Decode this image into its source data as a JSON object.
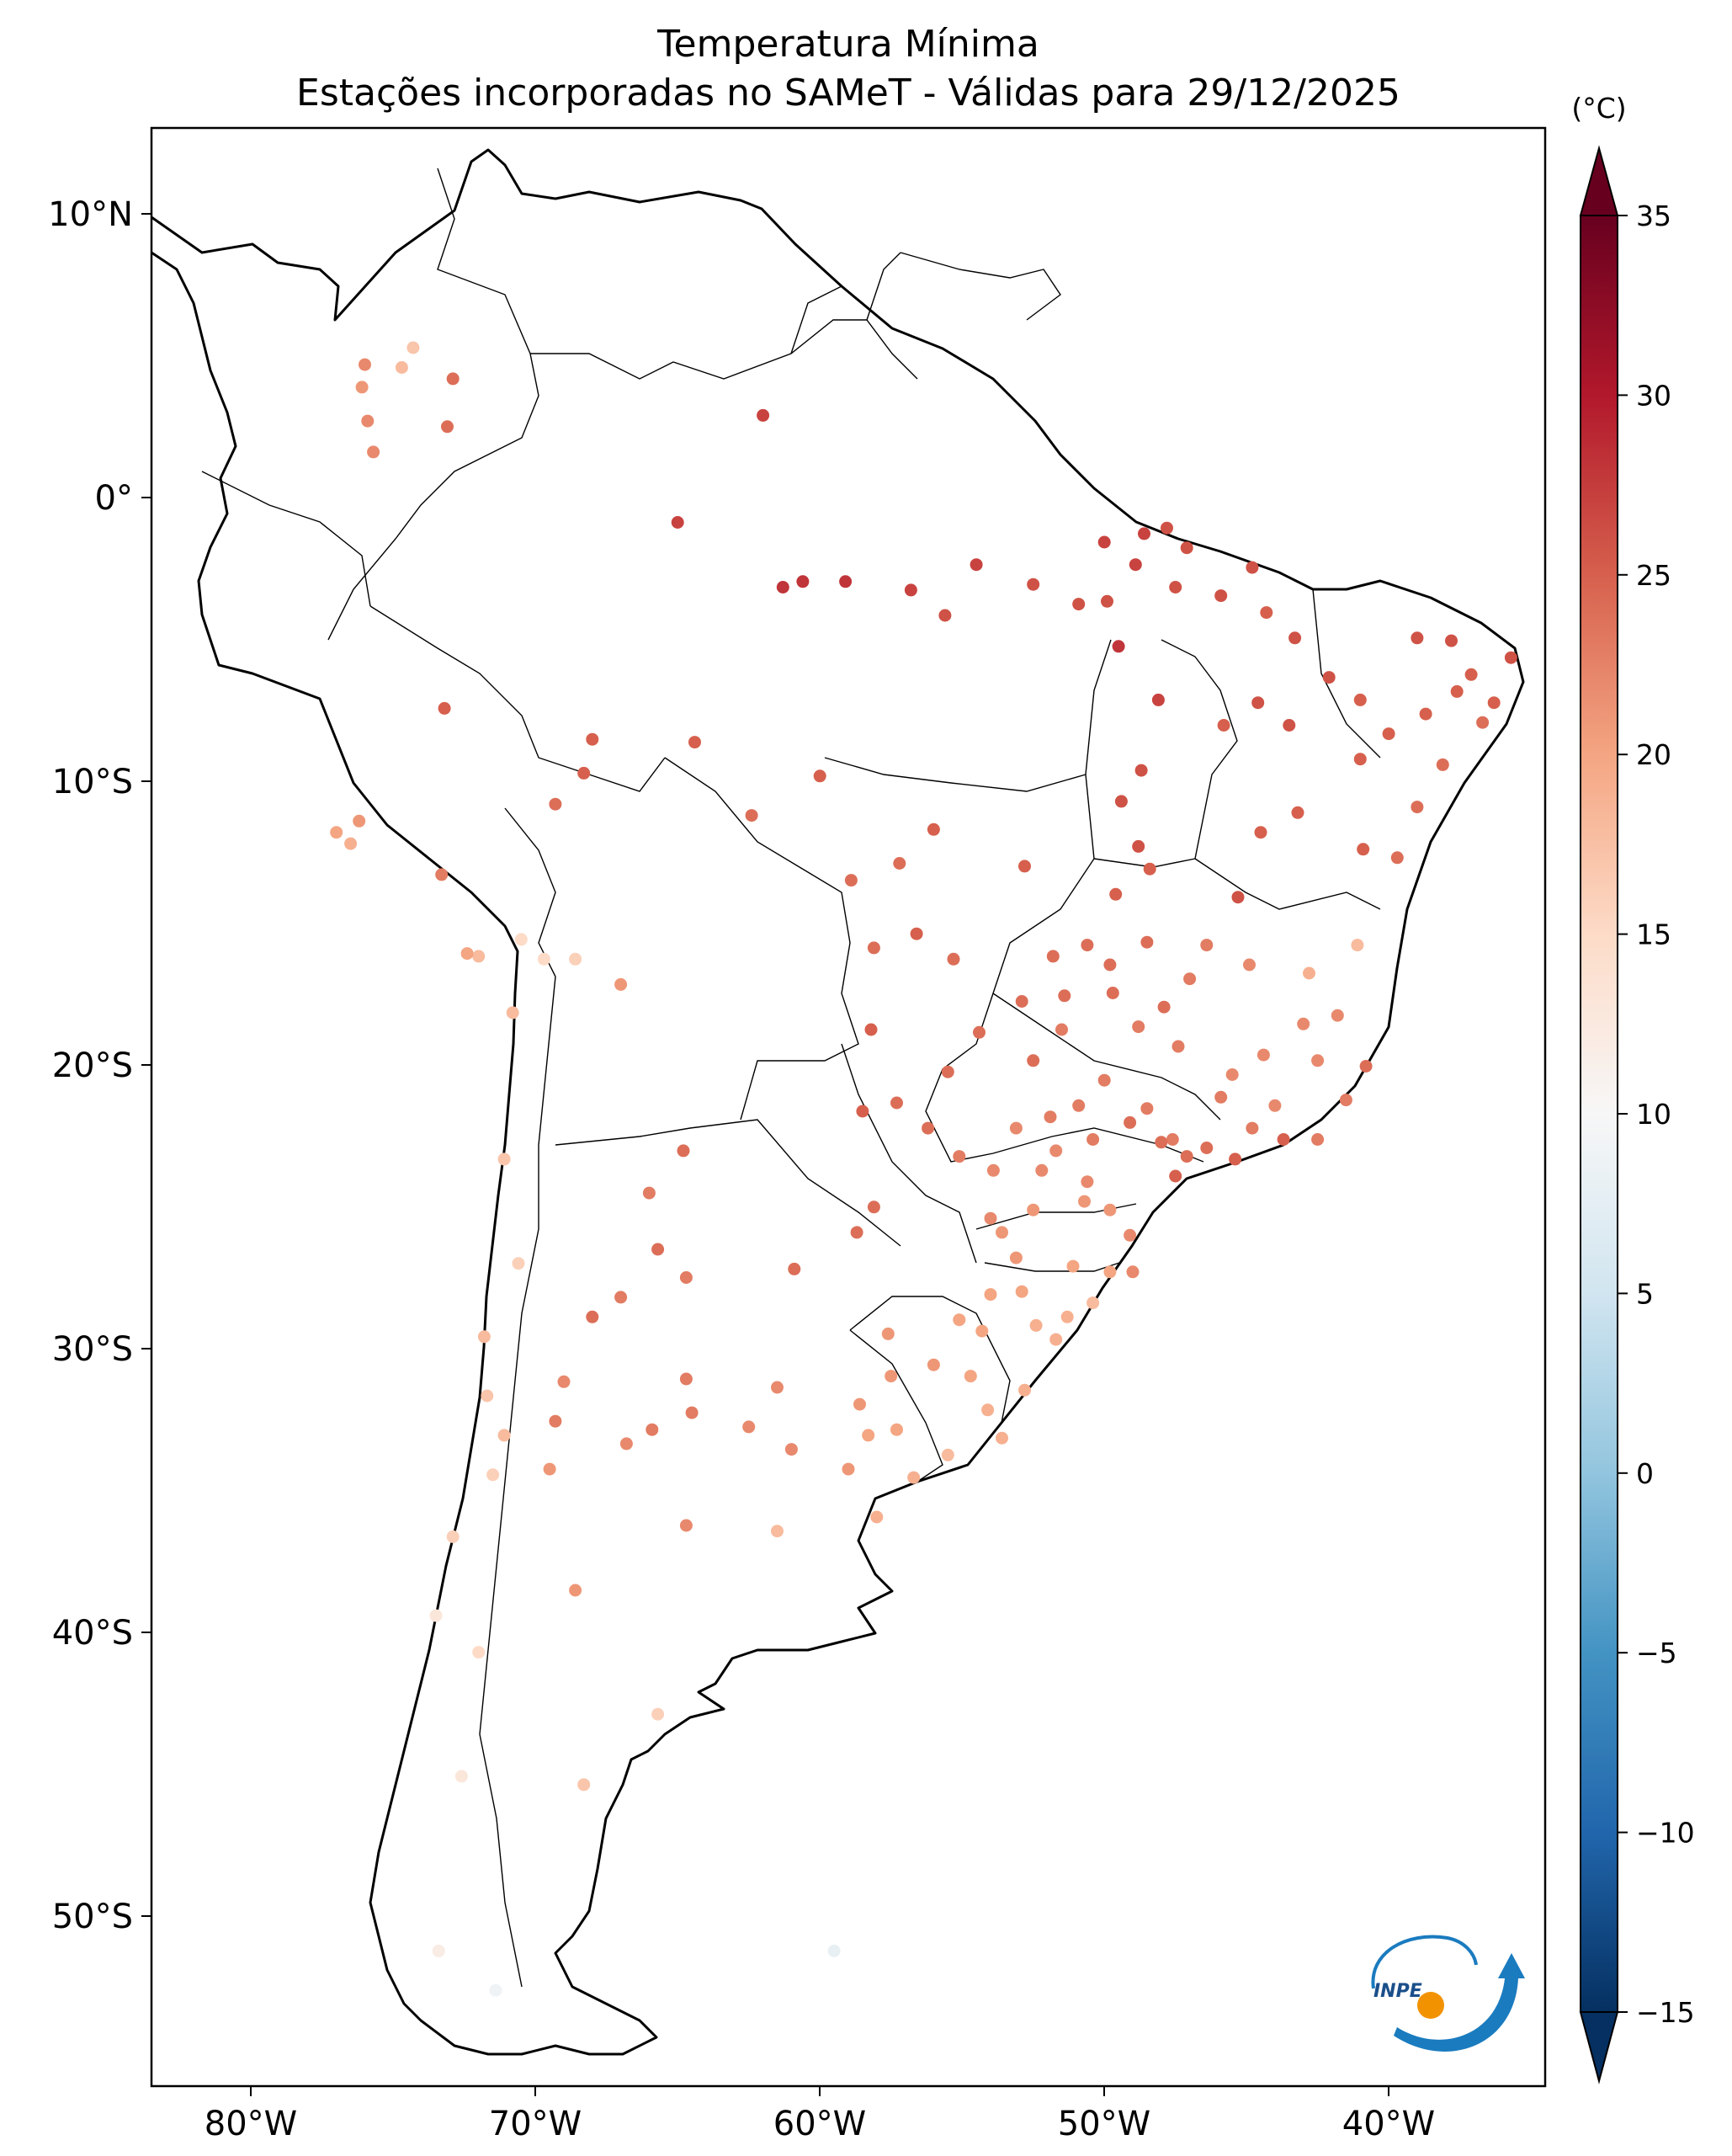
{
  "title": {
    "line1": "Temperatura Mínima",
    "line2": "Estações incorporadas no SAMeT - Válidas para 29/12/2025"
  },
  "map": {
    "lat_labels": [
      "10°N",
      "0°",
      "10°S",
      "20°S",
      "30°S",
      "40°S",
      "50°S"
    ],
    "lon_labels": [
      "80°W",
      "70°W",
      "60°W",
      "50°W",
      "40°W"
    ],
    "lon_range": [
      -83,
      -34
    ],
    "lat_range": [
      -56.5,
      13
    ],
    "stations_note": "representative sample of station markers"
  },
  "colorbar": {
    "unit": "(°C)",
    "ticks": [
      "35",
      "30",
      "25",
      "20",
      "15",
      "10",
      "5",
      "0",
      "−5",
      "−10",
      "−15"
    ],
    "tick_values": [
      35,
      30,
      25,
      20,
      15,
      10,
      5,
      0,
      -5,
      -10,
      -15
    ],
    "range": [
      -15,
      35
    ],
    "colors": [
      "#053061",
      "#2166ac",
      "#4393c3",
      "#92c5de",
      "#d1e5f0",
      "#f7f7f7",
      "#fddbc7",
      "#f4a582",
      "#d6604d",
      "#b2182b",
      "#67001f"
    ]
  },
  "logo": {
    "text": "INPE"
  },
  "stations": [
    {
      "lon": -75.5,
      "lat": 4.6,
      "t": 22
    },
    {
      "lon": -75.6,
      "lat": 3.8,
      "t": 21
    },
    {
      "lon": -75.4,
      "lat": 2.6,
      "t": 22
    },
    {
      "lon": -75.2,
      "lat": 1.5,
      "t": 22
    },
    {
      "lon": -73.8,
      "lat": 5.2,
      "t": 17
    },
    {
      "lon": -74.2,
      "lat": 4.5,
      "t": 18
    },
    {
      "lon": -72.6,
      "lat": 2.4,
      "t": 24
    },
    {
      "lon": -72.4,
      "lat": 4.1,
      "t": 24
    },
    {
      "lon": -61.5,
      "lat": 2.8,
      "t": 27
    },
    {
      "lon": -64.5,
      "lat": -1.0,
      "t": 27
    },
    {
      "lon": -60.1,
      "lat": -3.1,
      "t": 28
    },
    {
      "lon": -60.8,
      "lat": -3.3,
      "t": 28
    },
    {
      "lon": -58.6,
      "lat": -3.1,
      "t": 28
    },
    {
      "lon": -56.3,
      "lat": -3.4,
      "t": 27
    },
    {
      "lon": -55.1,
      "lat": -4.3,
      "t": 26
    },
    {
      "lon": -54.0,
      "lat": -2.5,
      "t": 27
    },
    {
      "lon": -52.0,
      "lat": -3.2,
      "t": 26
    },
    {
      "lon": -50.4,
      "lat": -3.9,
      "t": 26
    },
    {
      "lon": -49.4,
      "lat": -3.8,
      "t": 26
    },
    {
      "lon": -49.5,
      "lat": -1.7,
      "t": 27
    },
    {
      "lon": -48.1,
      "lat": -1.4,
      "t": 27
    },
    {
      "lon": -47.3,
      "lat": -1.2,
      "t": 26
    },
    {
      "lon": -46.6,
      "lat": -1.9,
      "t": 26
    },
    {
      "lon": -47.0,
      "lat": -3.3,
      "t": 26
    },
    {
      "lon": -48.4,
      "lat": -2.5,
      "t": 27
    },
    {
      "lon": -49.0,
      "lat": -5.4,
      "t": 28
    },
    {
      "lon": -44.3,
      "lat": -2.6,
      "t": 26
    },
    {
      "lon": -45.4,
      "lat": -3.6,
      "t": 26
    },
    {
      "lon": -43.8,
      "lat": -4.2,
      "t": 25
    },
    {
      "lon": -42.8,
      "lat": -5.1,
      "t": 26
    },
    {
      "lon": -41.6,
      "lat": -6.5,
      "t": 26
    },
    {
      "lon": -44.1,
      "lat": -7.4,
      "t": 26
    },
    {
      "lon": -45.3,
      "lat": -8.2,
      "t": 25
    },
    {
      "lon": -43.0,
      "lat": -8.2,
      "t": 26
    },
    {
      "lon": -40.5,
      "lat": -7.3,
      "t": 25
    },
    {
      "lon": -38.5,
      "lat": -5.1,
      "t": 26
    },
    {
      "lon": -37.3,
      "lat": -5.2,
      "t": 26
    },
    {
      "lon": -36.6,
      "lat": -6.4,
      "t": 25
    },
    {
      "lon": -35.2,
      "lat": -5.8,
      "t": 26
    },
    {
      "lon": -35.8,
      "lat": -7.4,
      "t": 25
    },
    {
      "lon": -36.2,
      "lat": -8.1,
      "t": 24
    },
    {
      "lon": -37.1,
      "lat": -7.0,
      "t": 25
    },
    {
      "lon": -38.2,
      "lat": -7.8,
      "t": 25
    },
    {
      "lon": -39.5,
      "lat": -8.5,
      "t": 25
    },
    {
      "lon": -40.5,
      "lat": -9.4,
      "t": 25
    },
    {
      "lon": -37.6,
      "lat": -9.6,
      "t": 24
    },
    {
      "lon": -38.5,
      "lat": -11.1,
      "t": 24
    },
    {
      "lon": -39.2,
      "lat": -12.9,
      "t": 24
    },
    {
      "lon": -40.4,
      "lat": -12.6,
      "t": 25
    },
    {
      "lon": -42.7,
      "lat": -11.3,
      "t": 25
    },
    {
      "lon": -44.0,
      "lat": -12.0,
      "t": 25
    },
    {
      "lon": -44.8,
      "lat": -14.3,
      "t": 26
    },
    {
      "lon": -47.6,
      "lat": -7.3,
      "t": 27
    },
    {
      "lon": -48.2,
      "lat": -9.8,
      "t": 26
    },
    {
      "lon": -48.9,
      "lat": -10.9,
      "t": 26
    },
    {
      "lon": -48.3,
      "lat": -12.5,
      "t": 26
    },
    {
      "lon": -47.9,
      "lat": -13.3,
      "t": 25
    },
    {
      "lon": -49.1,
      "lat": -14.2,
      "t": 25
    },
    {
      "lon": -50.1,
      "lat": -16.0,
      "t": 24
    },
    {
      "lon": -51.3,
      "lat": -16.4,
      "t": 24
    },
    {
      "lon": -49.3,
      "lat": -16.7,
      "t": 24
    },
    {
      "lon": -48.0,
      "lat": -15.9,
      "t": 24
    },
    {
      "lon": -52.4,
      "lat": -18.0,
      "t": 24
    },
    {
      "lon": -51.0,
      "lat": -19.0,
      "t": 23
    },
    {
      "lon": -48.3,
      "lat": -18.9,
      "t": 23
    },
    {
      "lon": -46.5,
      "lat": -17.2,
      "t": 23
    },
    {
      "lon": -44.4,
      "lat": -16.7,
      "t": 22
    },
    {
      "lon": -43.9,
      "lat": -19.9,
      "t": 22
    },
    {
      "lon": -42.5,
      "lat": -18.8,
      "t": 22
    },
    {
      "lon": -41.3,
      "lat": -18.5,
      "t": 22
    },
    {
      "lon": -40.3,
      "lat": -20.3,
      "t": 24
    },
    {
      "lon": -41.0,
      "lat": -21.5,
      "t": 23
    },
    {
      "lon": -43.2,
      "lat": -22.9,
      "t": 25
    },
    {
      "lon": -44.3,
      "lat": -22.5,
      "t": 23
    },
    {
      "lon": -45.4,
      "lat": -21.4,
      "t": 23
    },
    {
      "lon": -46.6,
      "lat": -23.5,
      "t": 24
    },
    {
      "lon": -47.1,
      "lat": -22.9,
      "t": 23
    },
    {
      "lon": -48.0,
      "lat": -21.8,
      "t": 23
    },
    {
      "lon": -49.5,
      "lat": -20.8,
      "t": 23
    },
    {
      "lon": -50.4,
      "lat": -21.7,
      "t": 23
    },
    {
      "lon": -51.4,
      "lat": -22.1,
      "t": 23
    },
    {
      "lon": -52.6,
      "lat": -22.5,
      "t": 22
    },
    {
      "lon": -53.4,
      "lat": -24.0,
      "t": 22
    },
    {
      "lon": -51.2,
      "lat": -23.3,
      "t": 22
    },
    {
      "lon": -49.3,
      "lat": -25.4,
      "t": 21
    },
    {
      "lon": -50.2,
      "lat": -25.1,
      "t": 21
    },
    {
      "lon": -52.0,
      "lat": -25.4,
      "t": 21
    },
    {
      "lon": -53.5,
      "lat": -25.7,
      "t": 22
    },
    {
      "lon": -48.6,
      "lat": -26.3,
      "t": 22
    },
    {
      "lon": -49.3,
      "lat": -27.6,
      "t": 20
    },
    {
      "lon": -50.6,
      "lat": -27.4,
      "t": 20
    },
    {
      "lon": -52.6,
      "lat": -27.1,
      "t": 21
    },
    {
      "lon": -48.5,
      "lat": -27.6,
      "t": 22
    },
    {
      "lon": -51.2,
      "lat": -30.0,
      "t": 19
    },
    {
      "lon": -52.4,
      "lat": -28.3,
      "t": 20
    },
    {
      "lon": -53.8,
      "lat": -29.7,
      "t": 20
    },
    {
      "lon": -55.5,
      "lat": -30.9,
      "t": 21
    },
    {
      "lon": -57.1,
      "lat": -29.8,
      "t": 21
    },
    {
      "lon": -52.3,
      "lat": -31.8,
      "t": 19
    },
    {
      "lon": -53.1,
      "lat": -33.5,
      "t": 19
    },
    {
      "lon": -54.2,
      "lat": -31.3,
      "t": 20
    },
    {
      "lon": -56.2,
      "lat": -34.9,
      "t": 19
    },
    {
      "lon": -57.8,
      "lat": -33.4,
      "t": 20
    },
    {
      "lon": -55.0,
      "lat": -34.1,
      "t": 18
    },
    {
      "lon": -54.8,
      "lat": -16.5,
      "t": 24
    },
    {
      "lon": -56.1,
      "lat": -15.6,
      "t": 25
    },
    {
      "lon": -57.6,
      "lat": -16.1,
      "t": 24
    },
    {
      "lon": -58.4,
      "lat": -13.7,
      "t": 24
    },
    {
      "lon": -56.7,
      "lat": -13.1,
      "t": 24
    },
    {
      "lon": -52.3,
      "lat": -13.2,
      "t": 25
    },
    {
      "lon": -55.5,
      "lat": -11.9,
      "t": 25
    },
    {
      "lon": -59.5,
      "lat": -10.0,
      "t": 25
    },
    {
      "lon": -61.9,
      "lat": -11.4,
      "t": 24
    },
    {
      "lon": -63.9,
      "lat": -8.8,
      "t": 25
    },
    {
      "lon": -67.8,
      "lat": -9.9,
      "t": 25
    },
    {
      "lon": -68.8,
      "lat": -11.0,
      "t": 24
    },
    {
      "lon": -67.5,
      "lat": -8.7,
      "t": 25
    },
    {
      "lon": -72.7,
      "lat": -7.6,
      "t": 25
    },
    {
      "lon": -55.0,
      "lat": -20.5,
      "t": 24
    },
    {
      "lon": -56.8,
      "lat": -21.6,
      "t": 24
    },
    {
      "lon": -57.7,
      "lat": -19.0,
      "t": 25
    },
    {
      "lon": -58.0,
      "lat": -21.9,
      "t": 25
    },
    {
      "lon": -54.6,
      "lat": -23.5,
      "t": 23
    },
    {
      "lon": -55.7,
      "lat": -22.5,
      "t": 24
    },
    {
      "lon": -57.6,
      "lat": -25.3,
      "t": 24
    },
    {
      "lon": -58.2,
      "lat": -26.2,
      "t": 24
    },
    {
      "lon": -60.4,
      "lat": -27.5,
      "t": 24
    },
    {
      "lon": -64.2,
      "lat": -27.8,
      "t": 23
    },
    {
      "lon": -65.2,
      "lat": -26.8,
      "t": 24
    },
    {
      "lon": -64.3,
      "lat": -23.3,
      "t": 24
    },
    {
      "lon": -65.5,
      "lat": -24.8,
      "t": 23
    },
    {
      "lon": -66.5,
      "lat": -28.5,
      "t": 23
    },
    {
      "lon": -67.5,
      "lat": -29.2,
      "t": 24
    },
    {
      "lon": -64.2,
      "lat": -31.4,
      "t": 23
    },
    {
      "lon": -64.0,
      "lat": -32.6,
      "t": 23
    },
    {
      "lon": -65.4,
      "lat": -33.2,
      "t": 23
    },
    {
      "lon": -68.8,
      "lat": -32.9,
      "t": 23
    },
    {
      "lon": -68.5,
      "lat": -31.5,
      "t": 22
    },
    {
      "lon": -66.3,
      "lat": -33.7,
      "t": 22
    },
    {
      "lon": -62.0,
      "lat": -33.1,
      "t": 22
    },
    {
      "lon": -61.0,
      "lat": -31.7,
      "t": 22
    },
    {
      "lon": -60.5,
      "lat": -33.9,
      "t": 22
    },
    {
      "lon": -58.5,
      "lat": -34.6,
      "t": 21
    },
    {
      "lon": -57.5,
      "lat": -36.3,
      "t": 19
    },
    {
      "lon": -61.0,
      "lat": -36.8,
      "t": 18
    },
    {
      "lon": -64.2,
      "lat": -36.6,
      "t": 22
    },
    {
      "lon": -68.1,
      "lat": -38.9,
      "t": 21
    },
    {
      "lon": -69.0,
      "lat": -34.6,
      "t": 21
    },
    {
      "lon": -67.8,
      "lat": -45.8,
      "t": 17
    },
    {
      "lon": -65.2,
      "lat": -43.3,
      "t": 16
    },
    {
      "lon": -71.5,
      "lat": -41.1,
      "t": 15
    },
    {
      "lon": -70.6,
      "lat": -23.6,
      "t": 17
    },
    {
      "lon": -70.3,
      "lat": -18.4,
      "t": 18
    },
    {
      "lon": -71.5,
      "lat": -16.4,
      "t": 18
    },
    {
      "lon": -70.0,
      "lat": -15.8,
      "t": 15
    },
    {
      "lon": -69.2,
      "lat": -16.5,
      "t": 15
    },
    {
      "lon": -66.5,
      "lat": -17.4,
      "t": 21
    },
    {
      "lon": -68.1,
      "lat": -16.5,
      "t": 16
    },
    {
      "lon": -72.8,
      "lat": -13.5,
      "t": 23
    },
    {
      "lon": -71.9,
      "lat": -16.3,
      "t": 20
    },
    {
      "lon": -76.5,
      "lat": -12.0,
      "t": 20
    },
    {
      "lon": -75.7,
      "lat": -11.6,
      "t": 21
    },
    {
      "lon": -76.0,
      "lat": -12.4,
      "t": 19
    },
    {
      "lon": -70.1,
      "lat": -27.3,
      "t": 16
    },
    {
      "lon": -71.3,
      "lat": -29.9,
      "t": 18
    },
    {
      "lon": -71.2,
      "lat": -32.0,
      "t": 17
    },
    {
      "lon": -70.6,
      "lat": -33.4,
      "t": 18
    },
    {
      "lon": -71.0,
      "lat": -34.8,
      "t": 16
    },
    {
      "lon": -72.4,
      "lat": -37.0,
      "t": 16
    },
    {
      "lon": -73.0,
      "lat": -39.8,
      "t": 13
    },
    {
      "lon": -72.1,
      "lat": -45.5,
      "t": 13
    },
    {
      "lon": -72.9,
      "lat": -51.7,
      "t": 12
    },
    {
      "lon": -70.9,
      "lat": -53.1,
      "t": 9
    },
    {
      "lon": -59.0,
      "lat": -51.7,
      "t": 8
    },
    {
      "lon": -47.5,
      "lat": -23.0,
      "t": 24
    },
    {
      "lon": -48.6,
      "lat": -22.3,
      "t": 24
    },
    {
      "lon": -49.9,
      "lat": -22.9,
      "t": 23
    },
    {
      "lon": -47.0,
      "lat": -24.2,
      "t": 25
    },
    {
      "lon": -45.9,
      "lat": -23.2,
      "t": 24
    },
    {
      "lon": -44.9,
      "lat": -23.6,
      "t": 25
    },
    {
      "lon": -42.0,
      "lat": -22.9,
      "t": 23
    },
    {
      "lon": -43.5,
      "lat": -21.7,
      "t": 22
    },
    {
      "lon": -45.0,
      "lat": -20.6,
      "t": 22
    },
    {
      "lon": -46.9,
      "lat": -19.6,
      "t": 23
    },
    {
      "lon": -42.0,
      "lat": -20.1,
      "t": 22
    },
    {
      "lon": -42.3,
      "lat": -17.0,
      "t": 19
    },
    {
      "lon": -40.6,
      "lat": -16.0,
      "t": 18
    },
    {
      "lon": -45.9,
      "lat": -16.0,
      "t": 23
    },
    {
      "lon": -47.4,
      "lat": -18.2,
      "t": 24
    },
    {
      "lon": -49.2,
      "lat": -17.7,
      "t": 24
    },
    {
      "lon": -50.9,
      "lat": -17.8,
      "t": 24
    },
    {
      "lon": -53.9,
      "lat": -19.1,
      "t": 24
    },
    {
      "lon": -52.0,
      "lat": -20.1,
      "t": 24
    },
    {
      "lon": -50.1,
      "lat": -24.4,
      "t": 22
    },
    {
      "lon": -51.7,
      "lat": -24.0,
      "t": 22
    },
    {
      "lon": -53.1,
      "lat": -26.2,
      "t": 21
    },
    {
      "lon": -49.9,
      "lat": -28.7,
      "t": 18
    },
    {
      "lon": -50.8,
      "lat": -29.2,
      "t": 19
    },
    {
      "lon": -51.9,
      "lat": -29.5,
      "t": 19
    },
    {
      "lon": -53.5,
      "lat": -28.4,
      "t": 20
    },
    {
      "lon": -54.6,
      "lat": -29.3,
      "t": 20
    },
    {
      "lon": -57.0,
      "lat": -31.3,
      "t": 21
    },
    {
      "lon": -58.1,
      "lat": -32.3,
      "t": 21
    },
    {
      "lon": -56.8,
      "lat": -33.2,
      "t": 20
    },
    {
      "lon": -53.6,
      "lat": -32.5,
      "t": 19
    }
  ]
}
